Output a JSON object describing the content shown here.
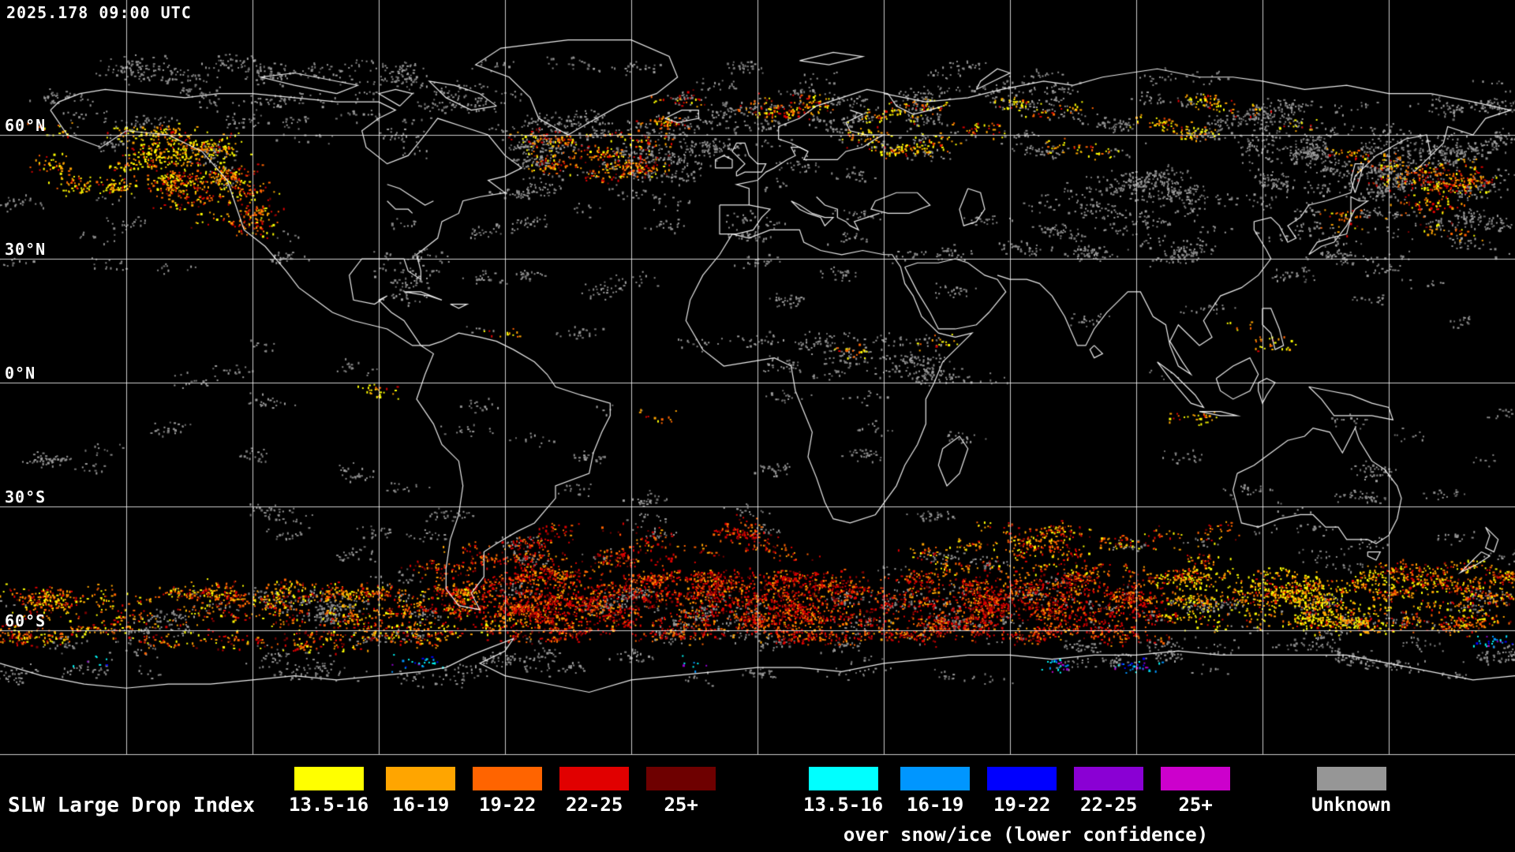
{
  "header": {
    "timestamp": "2025.178 09:00 UTC"
  },
  "map": {
    "lat_labels": [
      {
        "text": "60°N",
        "lat": 60
      },
      {
        "text": "30°N",
        "lat": 30
      },
      {
        "text": "0°N",
        "lat": 0
      },
      {
        "text": "30°S",
        "lat": -30
      },
      {
        "text": "60°S",
        "lat": -60
      }
    ],
    "grid": {
      "lon_step_deg": 30,
      "lat_step_deg": 30,
      "bottom_lat": -90
    },
    "palettes": {
      "warmYellow": [
        [
          "#ffff00",
          45
        ],
        [
          "#ffa500",
          30
        ],
        [
          "#ff6400",
          15
        ],
        [
          "#dc0000",
          10
        ]
      ],
      "warmMix": [
        [
          "#ffff00",
          20
        ],
        [
          "#ffa500",
          25
        ],
        [
          "#ff6400",
          25
        ],
        [
          "#e10000",
          20
        ],
        [
          "#7a0000",
          10
        ]
      ],
      "warmRed": [
        [
          "#ffa500",
          15
        ],
        [
          "#ff6400",
          25
        ],
        [
          "#e10000",
          40
        ],
        [
          "#7a0000",
          20
        ]
      ],
      "cool": [
        [
          "#00ffff",
          40
        ],
        [
          "#0096ff",
          25
        ],
        [
          "#0000ff",
          15
        ],
        [
          "#9400d3",
          10
        ],
        [
          "#cc00cc",
          10
        ]
      ],
      "gray": [
        [
          "#8a8a8a",
          50
        ],
        [
          "#a0a0a0",
          30
        ],
        [
          "#6f6f6f",
          20
        ]
      ]
    },
    "regions": [
      {
        "name": "arctic-cloud",
        "lon": [
          -180,
          180
        ],
        "lat": [
          55,
          78
        ],
        "count": 2600,
        "palette": "gray"
      },
      {
        "name": "nw-atlantic-cloud",
        "lon": [
          -60,
          -10
        ],
        "lat": [
          45,
          65
        ],
        "count": 700,
        "palette": "gray"
      },
      {
        "name": "ne-asia-cloud",
        "lon": [
          120,
          180
        ],
        "lat": [
          30,
          60
        ],
        "count": 900,
        "palette": "gray"
      },
      {
        "name": "central-asia-cloud",
        "lon": [
          60,
          110
        ],
        "lat": [
          30,
          50
        ],
        "count": 500,
        "palette": "gray"
      },
      {
        "name": "midlat-north-cloud",
        "lon": [
          -180,
          180
        ],
        "lat": [
          25,
          55
        ],
        "count": 1100,
        "palette": "gray"
      },
      {
        "name": "tropics-cloud",
        "lon": [
          -180,
          180
        ],
        "lat": [
          -25,
          25
        ],
        "count": 900,
        "palette": "gray"
      },
      {
        "name": "midlat-south-cloud",
        "lon": [
          -180,
          180
        ],
        "lat": [
          -48,
          -25
        ],
        "count": 700,
        "palette": "gray"
      },
      {
        "name": "s-ocean-cloud",
        "lon": [
          -180,
          180
        ],
        "lat": [
          -72,
          -50
        ],
        "count": 2200,
        "palette": "gray"
      },
      {
        "name": "itcz-africa-cloud",
        "lon": [
          -15,
          45
        ],
        "lat": [
          2,
          12
        ],
        "count": 300,
        "palette": "gray"
      },
      {
        "name": "gulf-of-alaska",
        "lon": [
          -170,
          -125
        ],
        "lat": [
          47,
          62
        ],
        "count": 700,
        "palette": "warmYellow"
      },
      {
        "name": "us-west-coast",
        "lon": [
          -140,
          -118
        ],
        "lat": [
          36,
          52
        ],
        "count": 450,
        "palette": "warmMix"
      },
      {
        "name": "north-atlantic",
        "lon": [
          -55,
          -25
        ],
        "lat": [
          50,
          62
        ],
        "count": 420,
        "palette": "warmMix"
      },
      {
        "name": "greenland-sea",
        "lon": [
          -25,
          15
        ],
        "lat": [
          62,
          72
        ],
        "count": 220,
        "palette": "warmMix"
      },
      {
        "name": "n-europe-russia",
        "lon": [
          15,
          75
        ],
        "lat": [
          55,
          68
        ],
        "count": 320,
        "palette": "warmYellow"
      },
      {
        "name": "siberia-scatter",
        "lon": [
          75,
          130
        ],
        "lat": [
          55,
          70
        ],
        "count": 200,
        "palette": "warmYellow"
      },
      {
        "name": "nw-pacific-japan",
        "lon": [
          135,
          170
        ],
        "lat": [
          36,
          56
        ],
        "count": 450,
        "palette": "warmMix"
      },
      {
        "name": "itcz-warm-scatter",
        "lon": [
          -180,
          180
        ],
        "lat": [
          -10,
          15
        ],
        "count": 150,
        "palette": "warmYellow"
      },
      {
        "name": "s-atlantic-midlat",
        "lon": [
          -55,
          10
        ],
        "lat": [
          -48,
          -34
        ],
        "count": 500,
        "palette": "warmRed"
      },
      {
        "name": "s-indian-midlat",
        "lon": [
          40,
          110
        ],
        "lat": [
          -48,
          -34
        ],
        "count": 600,
        "palette": "warmMix"
      },
      {
        "name": "s-ocean-atlantic",
        "lon": [
          -60,
          20
        ],
        "lat": [
          -62,
          -46
        ],
        "count": 2600,
        "palette": "warmRed"
      },
      {
        "name": "s-ocean-indian",
        "lon": [
          20,
          95
        ],
        "lat": [
          -62,
          -46
        ],
        "count": 2000,
        "palette": "warmRed"
      },
      {
        "name": "s-ocean-pacific",
        "lon": [
          -180,
          -60
        ],
        "lat": [
          -64,
          -48
        ],
        "count": 1800,
        "palette": "warmMix"
      },
      {
        "name": "south-of-australia",
        "lon": [
          95,
          150
        ],
        "lat": [
          -60,
          -45
        ],
        "count": 1200,
        "palette": "warmYellow"
      },
      {
        "name": "nz-southeast",
        "lon": [
          150,
          180
        ],
        "lat": [
          -60,
          -44
        ],
        "count": 700,
        "palette": "warmMix"
      },
      {
        "name": "patagonia-drake",
        "lon": [
          -80,
          -55
        ],
        "lat": [
          -56,
          -38
        ],
        "count": 500,
        "palette": "warmRed"
      },
      {
        "name": "antarctic-snowice",
        "lon": [
          -180,
          180
        ],
        "lat": [
          -72,
          -62
        ],
        "count": 120,
        "palette": "cool"
      }
    ]
  },
  "legend": {
    "product_label": "SLW Large Drop Index",
    "bins": [
      {
        "label": "13.5-16",
        "color": "#ffff00"
      },
      {
        "label": "16-19",
        "color": "#ffa500"
      },
      {
        "label": "19-22",
        "color": "#ff6400"
      },
      {
        "label": "22-25",
        "color": "#e10000"
      },
      {
        "label": "25+",
        "color": "#6e0000"
      }
    ],
    "snow_bins": [
      {
        "label": "13.5-16",
        "color": "#00ffff"
      },
      {
        "label": "16-19",
        "color": "#0096ff"
      },
      {
        "label": "19-22",
        "color": "#0000ff"
      },
      {
        "label": "22-25",
        "color": "#8a00d4"
      },
      {
        "label": "25+",
        "color": "#cc00cc"
      }
    ],
    "snow_caption": "over snow/ice (lower confidence)",
    "unknown_label": "Unknown",
    "unknown_color": "#969696"
  }
}
